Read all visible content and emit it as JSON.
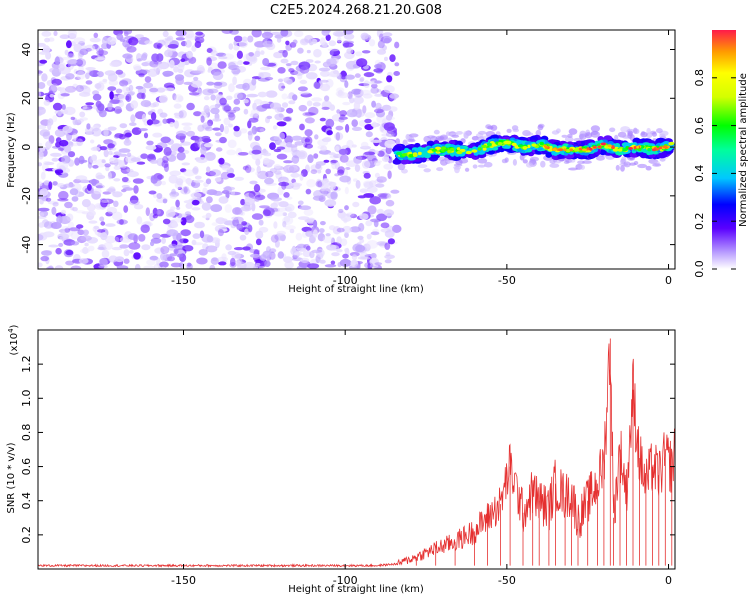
{
  "figure": {
    "title": "C2E5.2024.268.21.20.G08"
  },
  "colors": {
    "scatter_purple": "#7a1cff",
    "snr_line": "#e53030",
    "axis": "#000000"
  },
  "chart_data": [
    {
      "type": "heatmap",
      "xlabel": "Height of straight line (km)",
      "ylabel": "Frequency (Hz)",
      "xlim": [
        -195,
        2
      ],
      "ylim": [
        -50,
        48
      ],
      "xticks": [
        -150,
        -100,
        -50,
        0
      ],
      "yticks": [
        -40,
        -20,
        0,
        20,
        40
      ],
      "noise_region_x": [
        -195,
        -84
      ],
      "signal_track": {
        "x": [
          -84,
          -80,
          -70,
          -60,
          -55,
          -50,
          -45,
          -40,
          -35,
          -30,
          -25,
          -20,
          -15,
          -10,
          -5,
          0,
          1
        ],
        "y": [
          -3,
          -3,
          -1,
          -2,
          1,
          2,
          0,
          1,
          -1,
          -1,
          -1,
          1,
          -1,
          0,
          -1,
          0,
          1
        ]
      },
      "colorbar": {
        "label": "Normalized spectral amplitude",
        "ticks": [
          0.0,
          0.2,
          0.4,
          0.6,
          0.8
        ],
        "range": [
          0,
          1
        ]
      }
    },
    {
      "type": "line",
      "xlabel": "Height of straight line (km)",
      "ylabel": "SNR (10 * v/v)",
      "multiplier_label": "(x10",
      "multiplier_exp": "4",
      "multiplier_close": ")",
      "xlim": [
        -195,
        2
      ],
      "ylim": [
        0,
        1.4
      ],
      "xticks": [
        -150,
        -100,
        -50,
        0
      ],
      "yticks": [
        0.2,
        0.4,
        0.6,
        0.8,
        1.0,
        1.2
      ],
      "series": [
        {
          "x": [
            -195,
            -160,
            -120,
            -90,
            -84,
            -78,
            -72,
            -66,
            -60,
            -56,
            -52,
            -49,
            -45,
            -42,
            -40,
            -37,
            -35,
            -32,
            -30,
            -28,
            -25,
            -22,
            -20,
            -18,
            -17,
            -15,
            -13,
            -11,
            -9,
            -7,
            -5,
            -3,
            -1,
            1,
            2
          ],
          "y": [
            0.02,
            0.02,
            0.02,
            0.02,
            0.03,
            0.07,
            0.12,
            0.16,
            0.22,
            0.3,
            0.38,
            0.6,
            0.33,
            0.45,
            0.4,
            0.35,
            0.5,
            0.42,
            0.45,
            0.28,
            0.4,
            0.5,
            0.62,
            1.35,
            0.3,
            0.7,
            0.45,
            1.05,
            0.65,
            0.5,
            0.6,
            0.55,
            0.65,
            0.6,
            0.68
          ]
        }
      ]
    }
  ]
}
